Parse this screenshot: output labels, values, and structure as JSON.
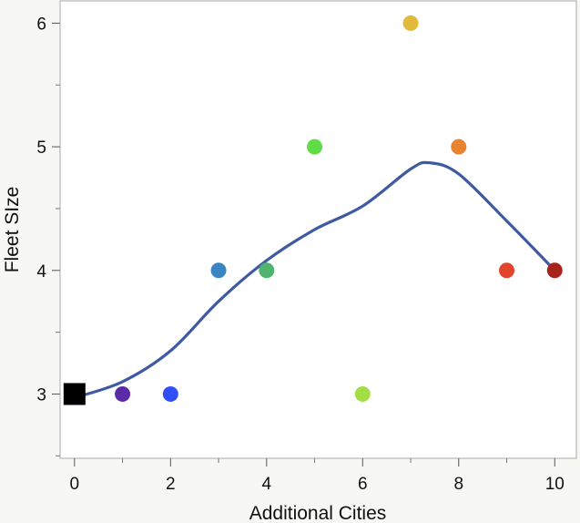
{
  "chart_data": {
    "type": "scatter",
    "title": "",
    "xlabel": "Additional Cities",
    "ylabel": "Fleet SIze",
    "xlim": [
      -0.3,
      10.45
    ],
    "ylim": [
      2.48,
      6.18
    ],
    "x_ticks": [
      0,
      2,
      4,
      6,
      8,
      10
    ],
    "y_ticks": [
      3,
      4,
      5,
      6
    ],
    "grid": false,
    "legend": "none",
    "points": [
      {
        "x": 0,
        "y": 3,
        "color": "#000000",
        "marker": "square"
      },
      {
        "x": 1,
        "y": 3,
        "color": "#5b2aa8",
        "marker": "circle"
      },
      {
        "x": 2,
        "y": 3,
        "color": "#2f4ff5",
        "marker": "circle"
      },
      {
        "x": 3,
        "y": 4,
        "color": "#3a86c4",
        "marker": "circle"
      },
      {
        "x": 4,
        "y": 4,
        "color": "#4fb56e",
        "marker": "circle"
      },
      {
        "x": 5,
        "y": 5,
        "color": "#5fdc46",
        "marker": "circle"
      },
      {
        "x": 6,
        "y": 3,
        "color": "#a3df44",
        "marker": "circle"
      },
      {
        "x": 7,
        "y": 6,
        "color": "#e2b93b",
        "marker": "circle"
      },
      {
        "x": 8,
        "y": 5,
        "color": "#e8832f",
        "marker": "circle"
      },
      {
        "x": 9,
        "y": 4,
        "color": "#e2452a",
        "marker": "circle"
      },
      {
        "x": 10,
        "y": 4,
        "color": "#a8231c",
        "marker": "circle"
      }
    ],
    "smoother": {
      "color": "#3f5aa0",
      "x": [
        0,
        1,
        2,
        3,
        4,
        5,
        6,
        7,
        7.4,
        8,
        9,
        10
      ],
      "y": [
        2.97,
        3.1,
        3.35,
        3.75,
        4.08,
        4.33,
        4.52,
        4.82,
        4.87,
        4.78,
        4.4,
        4.0
      ]
    }
  }
}
